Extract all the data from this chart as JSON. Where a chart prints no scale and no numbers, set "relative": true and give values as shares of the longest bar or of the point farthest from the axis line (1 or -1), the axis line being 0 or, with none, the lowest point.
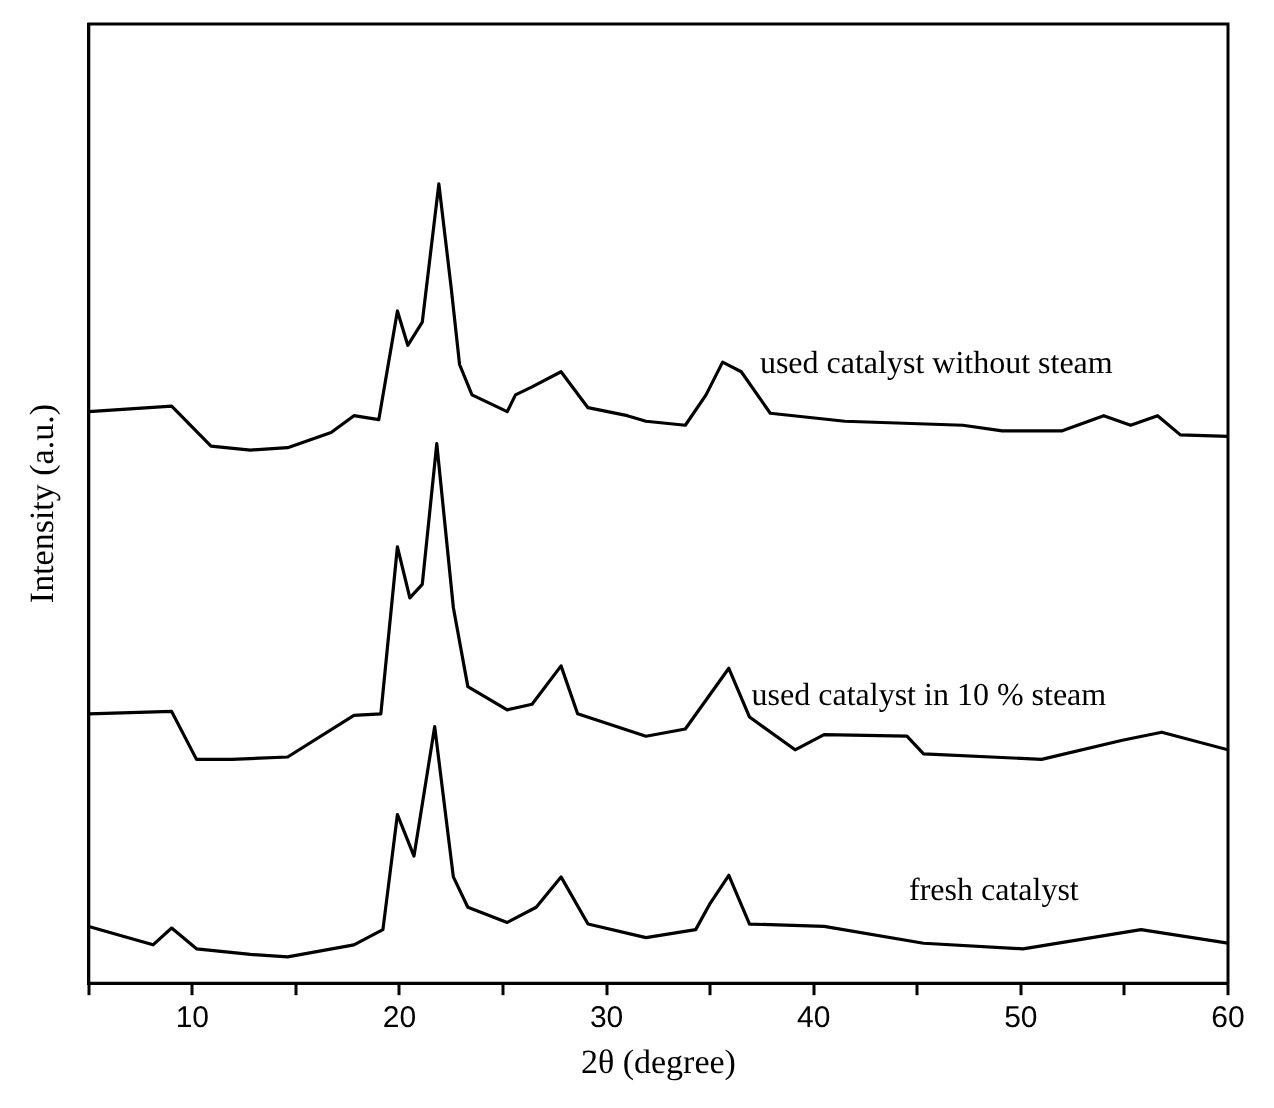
{
  "chart_data": {
    "type": "line",
    "xlabel": "2θ (degree)",
    "ylabel": "Intensity (a.u.)",
    "relative": true,
    "xlim": [
      5,
      60
    ],
    "xticks": [
      {
        "value": 5,
        "label": null
      },
      10,
      {
        "value": 15,
        "label": null
      },
      20,
      {
        "value": 25,
        "label": null
      },
      30,
      {
        "value": 35,
        "label": null
      },
      40,
      {
        "value": 45,
        "label": null
      },
      50,
      {
        "value": 55,
        "label": null
      },
      60
    ],
    "grid": false,
    "legend": false,
    "marker": "none",
    "line_style": "solid",
    "series": [
      {
        "name": "used catalyst without steam",
        "color": "#000000",
        "x": [
          5,
          9.0,
          10.9,
          12.8,
          14.6,
          16.7,
          17.8,
          19.0,
          19.9,
          20.4,
          21.1,
          21.9,
          22.5,
          22.9,
          23.5,
          25.2,
          25.6,
          26.4,
          27.8,
          29.1,
          31.0,
          31.9,
          33.8,
          34.8,
          35.6,
          36.5,
          37.9,
          41.5,
          47.2,
          49.1,
          52.0,
          54.0,
          55.3,
          56.6,
          57.7,
          60
        ],
        "values": [
          0.715,
          0.722,
          0.672,
          0.667,
          0.67,
          0.689,
          0.71,
          0.705,
          0.841,
          0.798,
          0.827,
          1.0,
          0.869,
          0.774,
          0.736,
          0.715,
          0.736,
          0.746,
          0.765,
          0.72,
          0.71,
          0.703,
          0.698,
          0.736,
          0.777,
          0.765,
          0.713,
          0.703,
          0.698,
          0.691,
          0.691,
          0.71,
          0.698,
          0.71,
          0.686,
          0.684
        ]
      },
      {
        "name": "used catalyst in 10 % steam",
        "color": "#000000",
        "x": [
          5,
          9.0,
          10.2,
          11.9,
          14.6,
          17.8,
          19.1,
          19.9,
          20.5,
          21.1,
          21.8,
          22.6,
          23.3,
          25.2,
          26.4,
          27.8,
          28.6,
          31.9,
          33.8,
          35.9,
          36.9,
          39.1,
          40.5,
          44.5,
          45.3,
          51.0,
          54.9,
          56.8,
          60
        ],
        "values": [
          0.337,
          0.34,
          0.28,
          0.28,
          0.283,
          0.335,
          0.337,
          0.546,
          0.482,
          0.499,
          0.675,
          0.47,
          0.371,
          0.342,
          0.349,
          0.397,
          0.337,
          0.309,
          0.318,
          0.394,
          0.333,
          0.292,
          0.311,
          0.309,
          0.287,
          0.28,
          0.304,
          0.314,
          0.292
        ]
      },
      {
        "name": "fresh catalyst",
        "color": "#000000",
        "x": [
          5,
          8.1,
          9.0,
          10.2,
          12.8,
          14.6,
          17.8,
          19.2,
          19.9,
          20.7,
          21.7,
          22.6,
          23.3,
          25.2,
          26.6,
          27.8,
          29.1,
          31.9,
          34.3,
          35.0,
          35.9,
          36.9,
          40.5,
          45.3,
          50.1,
          55.8,
          60
        ],
        "values": [
          0.071,
          0.048,
          0.069,
          0.043,
          0.036,
          0.033,
          0.048,
          0.067,
          0.211,
          0.159,
          0.321,
          0.133,
          0.095,
          0.076,
          0.095,
          0.133,
          0.074,
          0.057,
          0.067,
          0.1,
          0.135,
          0.074,
          0.071,
          0.05,
          0.043,
          0.067,
          0.05
        ]
      }
    ]
  }
}
